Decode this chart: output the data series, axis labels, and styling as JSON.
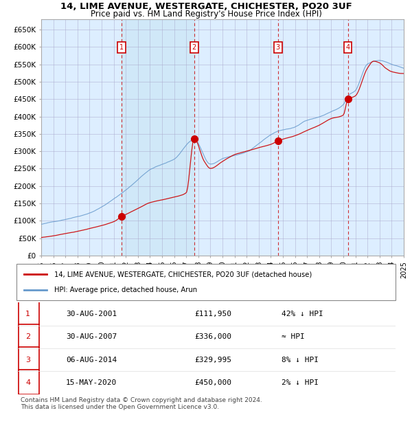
{
  "title1": "14, LIME AVENUE, WESTERGATE, CHICHESTER, PO20 3UF",
  "title2": "Price paid vs. HM Land Registry's House Price Index (HPI)",
  "xlabel": "",
  "ylabel": "",
  "ylim": [
    0,
    680000
  ],
  "yticks": [
    0,
    50000,
    100000,
    150000,
    200000,
    250000,
    300000,
    350000,
    400000,
    450000,
    500000,
    550000,
    600000,
    650000
  ],
  "ytick_labels": [
    "£0",
    "£50K",
    "£100K",
    "£150K",
    "£200K",
    "£250K",
    "£300K",
    "£350K",
    "£400K",
    "£450K",
    "£500K",
    "£550K",
    "£600K",
    "£650K"
  ],
  "year_start": 1995,
  "year_end": 2025,
  "sale_dates": [
    2001.66,
    2007.66,
    2014.58,
    2020.37
  ],
  "sale_prices": [
    111950,
    336000,
    329995,
    450000
  ],
  "sale_labels": [
    "1",
    "2",
    "3",
    "4"
  ],
  "legend_line1": "14, LIME AVENUE, WESTERGATE, CHICHESTER, PO20 3UF (detached house)",
  "legend_line2": "HPI: Average price, detached house, Arun",
  "table_rows": [
    {
      "num": "1",
      "date": "30-AUG-2001",
      "price": "£111,950",
      "rel": "42% ↓ HPI"
    },
    {
      "num": "2",
      "date": "30-AUG-2007",
      "price": "£336,000",
      "rel": "≈ HPI"
    },
    {
      "num": "3",
      "date": "06-AUG-2014",
      "price": "£329,995",
      "rel": "8% ↓ HPI"
    },
    {
      "num": "4",
      "date": "15-MAY-2020",
      "price": "£450,000",
      "rel": "2% ↓ HPI"
    }
  ],
  "footer": "Contains HM Land Registry data © Crown copyright and database right 2024.\nThis data is licensed under the Open Government Licence v3.0.",
  "bg_color": "#ddeeff",
  "plot_bg": "#ddeeff",
  "grid_color": "#aaaacc",
  "red_line_color": "#cc0000",
  "blue_line_color": "#6699cc",
  "sale_marker_color": "#cc0000",
  "sale_vline_color": "#cc0000",
  "purchase1_vline_color": "#999999"
}
